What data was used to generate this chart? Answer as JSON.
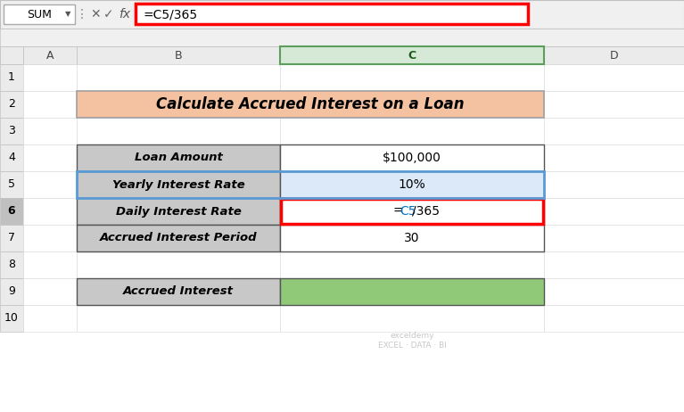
{
  "title": "Calculate Accrued Interest on a Loan",
  "title_bg": "#F4C2A1",
  "formula_bar_text": "=C5/365",
  "formula_bar_border": "#FF0000",
  "cell_name": "SUM",
  "table_rows": [
    {
      "label": "Loan Amount",
      "value": "$100,000",
      "value_bg": "#FFFFFF",
      "red_border": false,
      "blue_sel": false
    },
    {
      "label": "Yearly Interest Rate",
      "value": "10%",
      "value_bg": "#DCE9F8",
      "red_border": false,
      "blue_sel": true
    },
    {
      "label": "Daily Interest Rate",
      "value": "=C5/365",
      "value_bg": "#FFFFFF",
      "red_border": true,
      "blue_sel": false
    },
    {
      "label": "Accrued Interest Period",
      "value": "30",
      "value_bg": "#FFFFFF",
      "red_border": false,
      "blue_sel": false
    }
  ],
  "bottom_label": "Accrued Interest",
  "bottom_label_bg": "#C8C8C8",
  "bottom_value_bg": "#90C978",
  "label_bg": "#C8C8C8",
  "col_header_bg": "#EBEBEB",
  "col_C_header_bg": "#D6E8D6",
  "col_C_header_border": "#5C9E5C",
  "row_header_bg": "#EBEBEB",
  "row6_header_bg": "#C0C0C0",
  "toolbar_bg": "#F0F0F0",
  "sheet_bg": "#FFFFFF",
  "grid_light": "#D0D0D0",
  "grid_dark": "#555555",
  "blue_sel_color": "#5B9BD5",
  "watermark_color": "#AAAAAA"
}
